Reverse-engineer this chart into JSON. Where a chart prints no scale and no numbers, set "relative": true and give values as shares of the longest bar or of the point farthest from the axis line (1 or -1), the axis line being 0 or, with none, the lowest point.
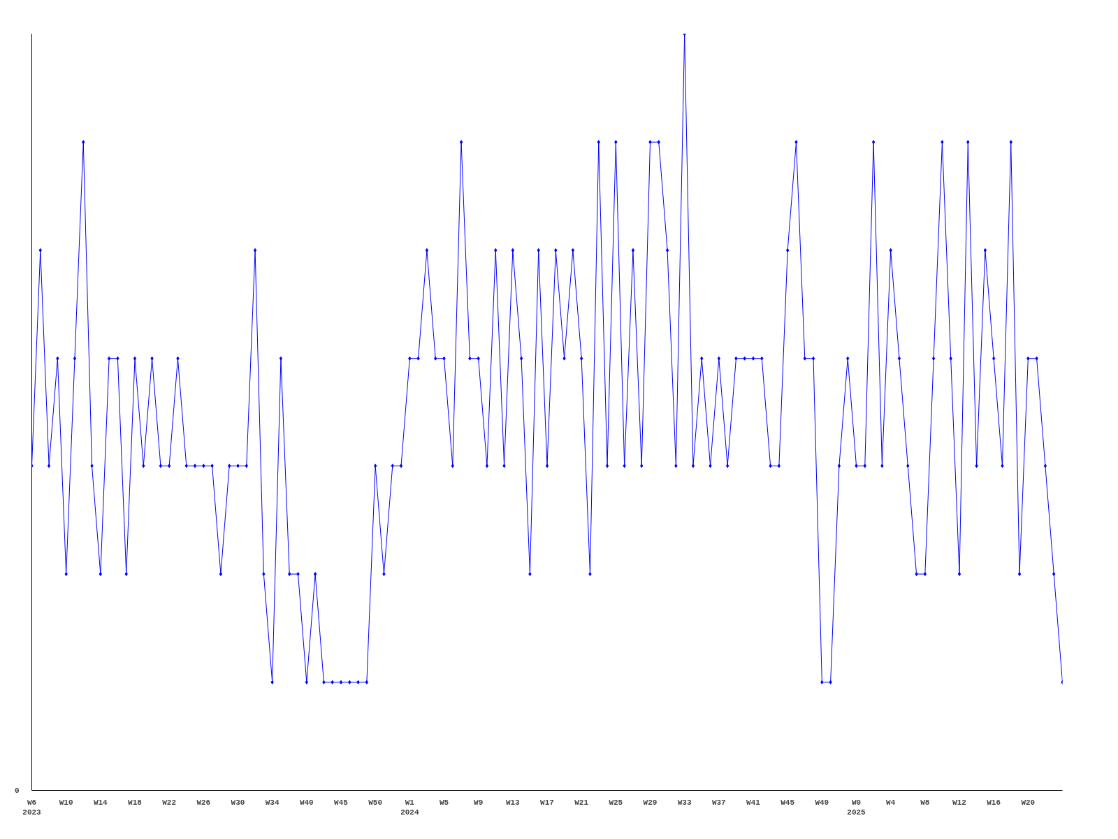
{
  "chart_data": {
    "type": "line",
    "relative": true,
    "color": "#0000ff",
    "marker": "diamond",
    "line_style": "solid",
    "grid": false,
    "annotations": [
      "0"
    ],
    "categories": [
      "W6\n2023",
      null,
      null,
      null,
      "W10",
      null,
      null,
      null,
      "W14",
      null,
      null,
      null,
      "W18",
      null,
      null,
      null,
      "W22",
      null,
      null,
      null,
      "W26",
      null,
      null,
      null,
      "W30",
      null,
      null,
      null,
      "W34",
      null,
      null,
      null,
      "W40",
      null,
      null,
      null,
      "W45",
      null,
      null,
      null,
      "W50",
      null,
      null,
      null,
      "W1\n2024",
      null,
      null,
      null,
      "W5",
      null,
      null,
      null,
      "W9",
      null,
      null,
      null,
      "W13",
      null,
      null,
      null,
      "W17",
      null,
      null,
      null,
      "W21",
      null,
      null,
      null,
      "W25",
      null,
      null,
      null,
      "W29",
      null,
      null,
      null,
      "W33",
      null,
      null,
      null,
      "W37",
      null,
      null,
      null,
      "W41",
      null,
      null,
      null,
      "W45",
      null,
      null,
      null,
      "W49",
      null,
      null,
      null,
      "W0\n2025",
      null,
      null,
      null,
      "W4",
      null,
      null,
      null,
      "W8",
      null,
      null,
      null,
      "W12",
      null,
      null,
      null,
      "W16",
      null,
      null,
      null,
      "W20",
      null,
      null,
      null,
      null
    ],
    "values": [
      0.429,
      0.714,
      0.429,
      0.571,
      0.286,
      0.571,
      0.857,
      0.429,
      0.286,
      0.571,
      0.571,
      0.286,
      0.571,
      0.429,
      0.571,
      0.429,
      0.429,
      0.571,
      0.429,
      0.429,
      0.429,
      0.429,
      0.286,
      0.429,
      0.429,
      0.429,
      0.714,
      0.286,
      0.143,
      0.571,
      0.286,
      0.286,
      0.143,
      0.286,
      0.143,
      0.143,
      0.143,
      0.143,
      0.143,
      0.143,
      0.429,
      0.286,
      0.429,
      0.429,
      0.571,
      0.571,
      0.714,
      0.571,
      0.571,
      0.429,
      0.857,
      0.571,
      0.571,
      0.429,
      0.714,
      0.429,
      0.714,
      0.571,
      0.286,
      0.714,
      0.429,
      0.714,
      0.571,
      0.714,
      0.571,
      0.286,
      0.857,
      0.429,
      0.857,
      0.429,
      0.714,
      0.429,
      0.857,
      0.857,
      0.714,
      0.429,
      1,
      0.429,
      0.571,
      0.429,
      0.571,
      0.429,
      0.571,
      0.571,
      0.571,
      0.571,
      0.429,
      0.429,
      0.714,
      0.857,
      0.571,
      0.571,
      0.143,
      0.143,
      0.429,
      0.571,
      0.429,
      0.429,
      0.857,
      0.429,
      0.714,
      0.571,
      0.429,
      0.286,
      0.286,
      0.571,
      0.857,
      0.571,
      0.286,
      0.857,
      0.429,
      0.714,
      0.571,
      0.429,
      0.857,
      0.286,
      0.571,
      0.571,
      0.429,
      0.286,
      0.143
    ]
  }
}
